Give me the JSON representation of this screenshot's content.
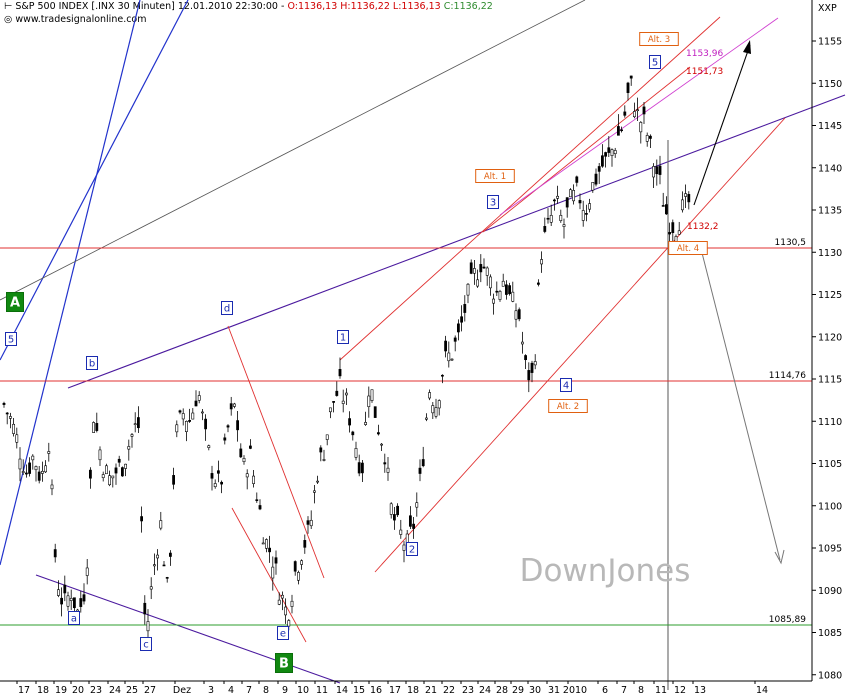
{
  "header": {
    "title_prefix": "S&P 500 INDEX [.INX 30 Minuten] 12.01.2010 22:30:00 -",
    "ohlc": "O:1136,13 H:1136,22 L:1136,13",
    "close": "C:1136,22",
    "source": "www.tradesignalonline.com",
    "axis_unit": "XXP"
  },
  "watermark": "DownJones",
  "chart_data": {
    "type": "candlestick",
    "title": "S&P 500 INDEX [.INX 30 Minuten]",
    "ylim": [
      1075,
      1160
    ],
    "y_ticks": [
      1080,
      1085,
      1090,
      1095,
      1100,
      1105,
      1110,
      1115,
      1120,
      1125,
      1130,
      1135,
      1140,
      1145,
      1150,
      1155
    ],
    "x_tick_labels": [
      "17",
      "18",
      "19",
      "20",
      "23",
      "24",
      "25",
      "27",
      "Dez",
      "3",
      "4",
      "7",
      "8",
      "9",
      "10",
      "11",
      "14",
      "15",
      "16",
      "17",
      "18",
      "21",
      "22",
      "23",
      "24",
      "28",
      "29",
      "30",
      "31",
      "2010",
      "6",
      "7",
      "8",
      "11",
      "12",
      "13",
      "14"
    ],
    "grid": false,
    "price_path": [
      [
        0,
        1112
      ],
      [
        1,
        1110
      ],
      [
        2,
        1107
      ],
      [
        3,
        1104
      ],
      [
        4,
        1106
      ],
      [
        5,
        1103
      ],
      [
        6,
        1108
      ],
      [
        7,
        1092
      ],
      [
        8,
        1088
      ],
      [
        9,
        1090
      ],
      [
        10,
        1087
      ],
      [
        11,
        1091
      ],
      [
        12,
        1111
      ],
      [
        13,
        1106
      ],
      [
        14,
        1103
      ],
      [
        15,
        1104
      ],
      [
        16,
        1105
      ],
      [
        17,
        1108
      ],
      [
        18,
        1110
      ],
      [
        19,
        1084
      ],
      [
        20,
        1092
      ],
      [
        21,
        1098
      ],
      [
        22,
        1089
      ],
      [
        23,
        1108
      ],
      [
        24,
        1111
      ],
      [
        25,
        1110
      ],
      [
        26,
        1114
      ],
      [
        27,
        1108
      ],
      [
        28,
        1104
      ],
      [
        29,
        1102
      ],
      [
        30,
        1109
      ],
      [
        31,
        1112
      ],
      [
        32,
        1104
      ],
      [
        33,
        1106
      ],
      [
        34,
        1101
      ],
      [
        35,
        1096
      ],
      [
        36,
        1094
      ],
      [
        37,
        1090
      ],
      [
        38,
        1087
      ],
      [
        39,
        1092
      ],
      [
        40,
        1095
      ],
      [
        41,
        1097
      ],
      [
        42,
        1104
      ],
      [
        43,
        1107
      ],
      [
        44,
        1112
      ],
      [
        45,
        1114
      ],
      [
        46,
        1112
      ],
      [
        47,
        1108
      ],
      [
        48,
        1104
      ],
      [
        49,
        1115
      ],
      [
        50,
        1110
      ],
      [
        51,
        1107
      ],
      [
        52,
        1099
      ],
      [
        53,
        1097
      ],
      [
        54,
        1095
      ],
      [
        55,
        1098
      ],
      [
        56,
        1104
      ],
      [
        57,
        1114
      ],
      [
        58,
        1112
      ],
      [
        59,
        1117
      ],
      [
        60,
        1118
      ],
      [
        61,
        1120
      ],
      [
        62,
        1124
      ],
      [
        63,
        1127
      ],
      [
        64,
        1129
      ],
      [
        65,
        1127
      ],
      [
        66,
        1125
      ],
      [
        67,
        1127
      ],
      [
        68,
        1124
      ],
      [
        69,
        1123
      ],
      [
        70,
        1116
      ],
      [
        71,
        1115
      ],
      [
        72,
        1130
      ],
      [
        73,
        1133
      ],
      [
        74,
        1136
      ],
      [
        75,
        1133
      ],
      [
        76,
        1136
      ],
      [
        77,
        1137
      ],
      [
        78,
        1135
      ],
      [
        79,
        1138
      ],
      [
        80,
        1140
      ],
      [
        81,
        1141
      ],
      [
        82,
        1143
      ],
      [
        83,
        1145
      ],
      [
        84,
        1150
      ],
      [
        85,
        1146
      ],
      [
        86,
        1145
      ],
      [
        87,
        1141
      ],
      [
        88,
        1138
      ],
      [
        89,
        1134
      ],
      [
        90,
        1133
      ],
      [
        91,
        1135
      ],
      [
        92,
        1136
      ]
    ],
    "horizontal_levels": [
      {
        "label": "1130,5",
        "value": 1130.5,
        "color": "#e03030"
      },
      {
        "label": "1114,76",
        "value": 1114.76,
        "color": "#e03030"
      },
      {
        "label": "1085,89",
        "value": 1085.89,
        "color": "#2e9d2e"
      }
    ],
    "price_annotations": [
      {
        "label": "1153,96",
        "value": 1153.96,
        "color": "#c020c0"
      },
      {
        "label": "1151,73",
        "value": 1151.73,
        "color": "#d00000"
      },
      {
        "label": "1132,2",
        "value": 1132.2,
        "color": "#d00000"
      }
    ],
    "wave_labels": [
      {
        "text": "1",
        "kind": "blue"
      },
      {
        "text": "2",
        "kind": "blue"
      },
      {
        "text": "3",
        "kind": "blue"
      },
      {
        "text": "4",
        "kind": "blue"
      },
      {
        "text": "5",
        "kind": "blue"
      },
      {
        "text": "5",
        "kind": "blue"
      },
      {
        "text": "a",
        "kind": "blue"
      },
      {
        "text": "b",
        "kind": "blue"
      },
      {
        "text": "c",
        "kind": "blue"
      },
      {
        "text": "d",
        "kind": "blue"
      },
      {
        "text": "e",
        "kind": "blue"
      },
      {
        "text": "Alt. 1",
        "kind": "orange"
      },
      {
        "text": "Alt. 2",
        "kind": "orange"
      },
      {
        "text": "Alt. 3",
        "kind": "orange"
      },
      {
        "text": "Alt. 4",
        "kind": "orange"
      },
      {
        "text": "A",
        "kind": "green"
      },
      {
        "text": "B",
        "kind": "green"
      }
    ]
  }
}
